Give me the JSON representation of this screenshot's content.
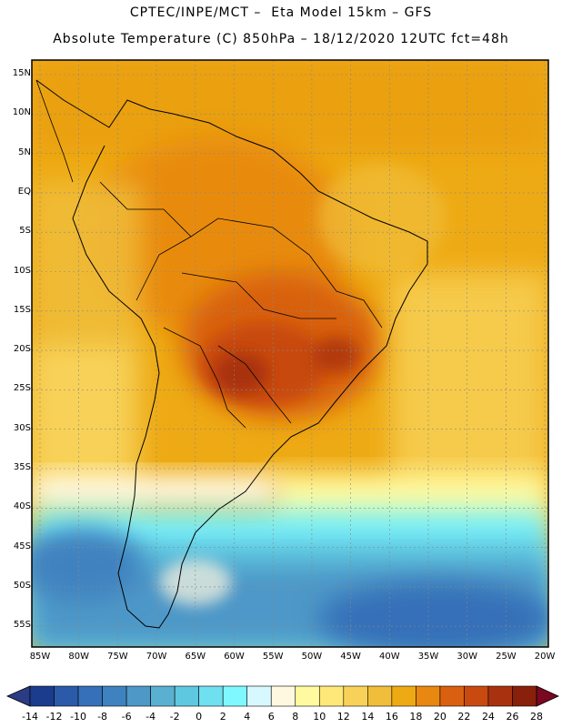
{
  "header": {
    "line1": "CPTEC/INPE/MCT –  Eta Model 15km – GFS",
    "line2": "Absolute Temperature (C) 850hPa – 18/12/2020 12UTC fct=48h"
  },
  "axes": {
    "latitudes": [
      "15N",
      "10N",
      "5N",
      "EQ",
      "5S",
      "10S",
      "15S",
      "20S",
      "25S",
      "30S",
      "35S",
      "40S",
      "45S",
      "50S",
      "55S"
    ],
    "longitudes": [
      "85W",
      "80W",
      "75W",
      "70W",
      "65W",
      "60W",
      "55W",
      "50W",
      "45W",
      "40W",
      "35W",
      "30W",
      "25W",
      "20W"
    ]
  },
  "colorbar": {
    "labels": [
      "-14",
      "-12",
      "-10",
      "-8",
      "-6",
      "-4",
      "-2",
      "0",
      "2",
      "4",
      "6",
      "8",
      "10",
      "12",
      "14",
      "16",
      "18",
      "20",
      "22",
      "24",
      "26",
      "28"
    ],
    "colors": [
      "#1b3c8c",
      "#2a5aa8",
      "#3670b8",
      "#3f82c0",
      "#4e98c8",
      "#5ab0d0",
      "#5ec8e0",
      "#6fe0f0",
      "#7ff8ff",
      "#d8f8ff",
      "#fff8e0",
      "#fffaa0",
      "#ffe87a",
      "#f8d258",
      "#f0be3a",
      "#eeaa14",
      "#e88810",
      "#d86010",
      "#c84a10",
      "#a83210",
      "#88200c"
    ],
    "under_color": "#2c3c84",
    "over_color": "#7a0820"
  }
}
